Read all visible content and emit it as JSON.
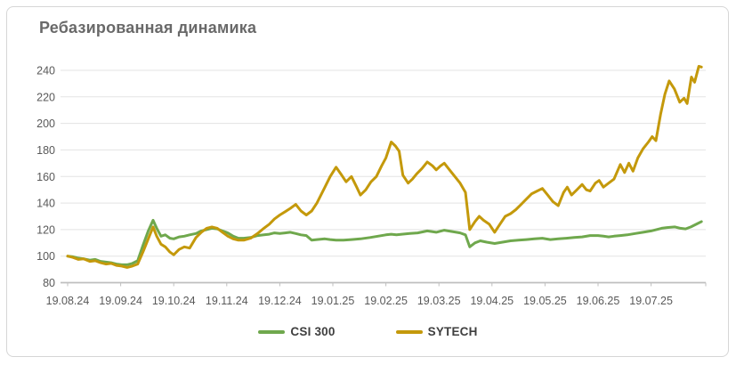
{
  "chart": {
    "title": "Ребазированная динамика",
    "legend": [
      {
        "label": "CSI 300",
        "color": "#6FA84D"
      },
      {
        "label": "SYTECH",
        "color": "#C4990B"
      }
    ]
  },
  "style": {
    "background": "#FFFFFF",
    "border": "#D6D6D6",
    "grid": "#E3E3E3",
    "axis": "#BFBFBF",
    "axis_text": "#595959",
    "title_text": "#696969",
    "legend_text": "#3F3F3F"
  },
  "chart_data": {
    "type": "line",
    "title": "Ребазированная динамика",
    "xlabel": "",
    "ylabel": "",
    "grid": true,
    "legend_position": "bottom",
    "ylim": [
      80,
      250
    ],
    "y_ticks": [
      80,
      100,
      120,
      140,
      160,
      180,
      200,
      220,
      240
    ],
    "x_tick_labels": [
      "19.08.24",
      "19.09.24",
      "19.10.24",
      "19.11.24",
      "19.12.24",
      "19.01.25",
      "19.02.25",
      "19.03.25",
      "19.04.25",
      "19.05.25",
      "19.06.25",
      "19.07.25"
    ],
    "x_unit": "months since 19.08.24 (rebased to 100)",
    "series": [
      {
        "name": "CSI 300",
        "color": "#6FA84D",
        "points": [
          [
            0,
            100
          ],
          [
            0.1,
            99.5
          ],
          [
            0.2,
            98.5
          ],
          [
            0.3,
            98
          ],
          [
            0.42,
            97
          ],
          [
            0.52,
            97.5
          ],
          [
            0.62,
            96
          ],
          [
            0.72,
            95.5
          ],
          [
            0.82,
            95
          ],
          [
            0.92,
            94
          ],
          [
            1.02,
            93.5
          ],
          [
            1.12,
            93.5
          ],
          [
            1.22,
            94.5
          ],
          [
            1.32,
            96.5
          ],
          [
            1.42,
            108
          ],
          [
            1.52,
            119
          ],
          [
            1.61,
            127
          ],
          [
            1.68,
            121
          ],
          [
            1.76,
            115
          ],
          [
            1.84,
            116
          ],
          [
            1.93,
            113.5
          ],
          [
            2.0,
            113
          ],
          [
            2.1,
            114.5
          ],
          [
            2.2,
            115
          ],
          [
            2.3,
            116
          ],
          [
            2.42,
            117
          ],
          [
            2.52,
            119
          ],
          [
            2.62,
            120
          ],
          [
            2.72,
            121
          ],
          [
            2.82,
            120.5
          ],
          [
            2.92,
            119
          ],
          [
            3.02,
            117.5
          ],
          [
            3.12,
            115
          ],
          [
            3.22,
            113.5
          ],
          [
            3.32,
            113.5
          ],
          [
            3.45,
            114
          ],
          [
            3.58,
            115.5
          ],
          [
            3.7,
            116
          ],
          [
            3.8,
            116.5
          ],
          [
            3.9,
            117.5
          ],
          [
            4.0,
            117
          ],
          [
            4.1,
            117.5
          ],
          [
            4.2,
            118
          ],
          [
            4.3,
            117
          ],
          [
            4.4,
            116
          ],
          [
            4.5,
            115.5
          ],
          [
            4.6,
            112
          ],
          [
            4.7,
            112.5
          ],
          [
            4.85,
            113
          ],
          [
            4.95,
            112.5
          ],
          [
            5.06,
            112
          ],
          [
            5.2,
            112
          ],
          [
            5.35,
            112.5
          ],
          [
            5.52,
            113
          ],
          [
            5.7,
            114
          ],
          [
            5.85,
            115
          ],
          [
            6.0,
            116
          ],
          [
            6.1,
            116.5
          ],
          [
            6.2,
            116
          ],
          [
            6.3,
            116.5
          ],
          [
            6.45,
            117
          ],
          [
            6.6,
            117.5
          ],
          [
            6.78,
            119
          ],
          [
            6.95,
            118
          ],
          [
            7.1,
            119.5
          ],
          [
            7.25,
            118.5
          ],
          [
            7.4,
            117.5
          ],
          [
            7.5,
            116
          ],
          [
            7.58,
            107
          ],
          [
            7.68,
            110
          ],
          [
            7.78,
            111.5
          ],
          [
            7.9,
            110.5
          ],
          [
            8.05,
            109.5
          ],
          [
            8.2,
            110.5
          ],
          [
            8.35,
            111.5
          ],
          [
            8.5,
            112
          ],
          [
            8.65,
            112.5
          ],
          [
            8.8,
            113
          ],
          [
            8.95,
            113.5
          ],
          [
            9.1,
            112.5
          ],
          [
            9.25,
            113
          ],
          [
            9.4,
            113.5
          ],
          [
            9.55,
            114
          ],
          [
            9.7,
            114.5
          ],
          [
            9.85,
            115.5
          ],
          [
            10.0,
            115.5
          ],
          [
            10.1,
            115
          ],
          [
            10.2,
            114.5
          ],
          [
            10.3,
            115
          ],
          [
            10.42,
            115.5
          ],
          [
            10.55,
            116
          ],
          [
            10.7,
            117
          ],
          [
            10.85,
            118
          ],
          [
            11.0,
            119
          ],
          [
            11.1,
            120
          ],
          [
            11.2,
            121
          ],
          [
            11.3,
            121.5
          ],
          [
            11.45,
            122
          ],
          [
            11.55,
            121
          ],
          [
            11.65,
            120.5
          ],
          [
            11.75,
            122
          ],
          [
            11.85,
            124
          ],
          [
            11.95,
            126
          ]
        ]
      },
      {
        "name": "SYTECH",
        "color": "#C4990B",
        "points": [
          [
            0,
            100
          ],
          [
            0.1,
            99
          ],
          [
            0.2,
            97.5
          ],
          [
            0.3,
            98
          ],
          [
            0.42,
            96
          ],
          [
            0.52,
            96.5
          ],
          [
            0.62,
            95
          ],
          [
            0.72,
            94
          ],
          [
            0.82,
            94.5
          ],
          [
            0.92,
            93
          ],
          [
            1.02,
            92.5
          ],
          [
            1.12,
            91.5
          ],
          [
            1.22,
            92.5
          ],
          [
            1.32,
            94
          ],
          [
            1.42,
            103
          ],
          [
            1.52,
            113
          ],
          [
            1.61,
            122
          ],
          [
            1.68,
            115
          ],
          [
            1.76,
            109
          ],
          [
            1.84,
            107
          ],
          [
            1.93,
            103
          ],
          [
            2.0,
            101
          ],
          [
            2.1,
            105
          ],
          [
            2.2,
            107
          ],
          [
            2.3,
            106
          ],
          [
            2.42,
            114
          ],
          [
            2.52,
            118
          ],
          [
            2.62,
            121
          ],
          [
            2.72,
            122
          ],
          [
            2.82,
            121
          ],
          [
            2.92,
            118
          ],
          [
            3.02,
            115
          ],
          [
            3.12,
            113
          ],
          [
            3.22,
            112
          ],
          [
            3.32,
            112
          ],
          [
            3.45,
            113.5
          ],
          [
            3.58,
            117
          ],
          [
            3.7,
            121
          ],
          [
            3.8,
            124
          ],
          [
            3.9,
            128
          ],
          [
            4.0,
            131
          ],
          [
            4.1,
            133.5
          ],
          [
            4.2,
            136
          ],
          [
            4.3,
            139
          ],
          [
            4.4,
            134
          ],
          [
            4.5,
            131
          ],
          [
            4.6,
            134
          ],
          [
            4.7,
            140
          ],
          [
            4.85,
            152
          ],
          [
            4.95,
            160
          ],
          [
            5.06,
            167
          ],
          [
            5.15,
            162
          ],
          [
            5.25,
            156
          ],
          [
            5.35,
            160
          ],
          [
            5.45,
            152
          ],
          [
            5.52,
            146
          ],
          [
            5.62,
            150
          ],
          [
            5.72,
            156
          ],
          [
            5.82,
            160
          ],
          [
            5.92,
            168
          ],
          [
            6.0,
            174
          ],
          [
            6.1,
            186
          ],
          [
            6.18,
            183
          ],
          [
            6.25,
            179
          ],
          [
            6.32,
            161
          ],
          [
            6.42,
            155
          ],
          [
            6.5,
            158
          ],
          [
            6.58,
            162
          ],
          [
            6.68,
            166
          ],
          [
            6.78,
            171
          ],
          [
            6.88,
            168
          ],
          [
            6.95,
            165
          ],
          [
            7.03,
            168
          ],
          [
            7.1,
            170
          ],
          [
            7.2,
            165
          ],
          [
            7.3,
            160
          ],
          [
            7.4,
            155
          ],
          [
            7.5,
            148
          ],
          [
            7.58,
            120
          ],
          [
            7.68,
            126
          ],
          [
            7.76,
            130
          ],
          [
            7.84,
            127
          ],
          [
            7.95,
            124
          ],
          [
            8.05,
            118
          ],
          [
            8.15,
            124
          ],
          [
            8.25,
            130
          ],
          [
            8.35,
            132
          ],
          [
            8.45,
            135
          ],
          [
            8.55,
            139
          ],
          [
            8.65,
            143
          ],
          [
            8.75,
            147
          ],
          [
            8.85,
            149
          ],
          [
            8.95,
            151
          ],
          [
            9.05,
            146
          ],
          [
            9.15,
            141
          ],
          [
            9.25,
            138
          ],
          [
            9.35,
            148
          ],
          [
            9.42,
            152
          ],
          [
            9.5,
            146
          ],
          [
            9.6,
            150
          ],
          [
            9.7,
            154
          ],
          [
            9.78,
            150
          ],
          [
            9.85,
            149
          ],
          [
            9.95,
            155
          ],
          [
            10.02,
            157
          ],
          [
            10.1,
            152
          ],
          [
            10.2,
            155
          ],
          [
            10.3,
            158
          ],
          [
            10.42,
            169
          ],
          [
            10.5,
            163
          ],
          [
            10.58,
            170
          ],
          [
            10.66,
            164
          ],
          [
            10.75,
            174
          ],
          [
            10.85,
            181
          ],
          [
            10.95,
            186
          ],
          [
            11.02,
            190
          ],
          [
            11.09,
            187
          ],
          [
            11.18,
            207
          ],
          [
            11.26,
            222
          ],
          [
            11.34,
            232
          ],
          [
            11.44,
            226
          ],
          [
            11.54,
            216
          ],
          [
            11.62,
            219
          ],
          [
            11.68,
            215
          ],
          [
            11.76,
            235
          ],
          [
            11.82,
            231
          ],
          [
            11.9,
            243
          ],
          [
            11.95,
            242.5
          ]
        ]
      }
    ]
  }
}
